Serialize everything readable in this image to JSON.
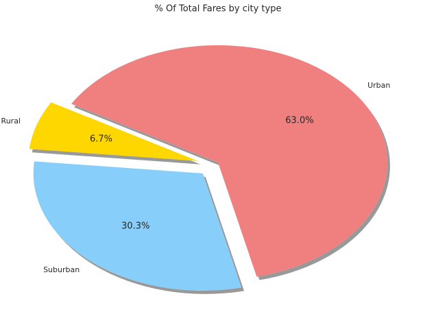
{
  "chart_data": {
    "type": "pie",
    "title": "% Of Total Fares by city type",
    "categories": [
      "Rural",
      "Suburban",
      "Urban"
    ],
    "values": [
      6.7,
      30.3,
      63.0
    ],
    "value_labels": [
      "6.7%",
      "30.3%",
      "63.0%"
    ],
    "colors": [
      "#ffd700",
      "#87cefa",
      "#f08080"
    ],
    "shadow": true
  }
}
